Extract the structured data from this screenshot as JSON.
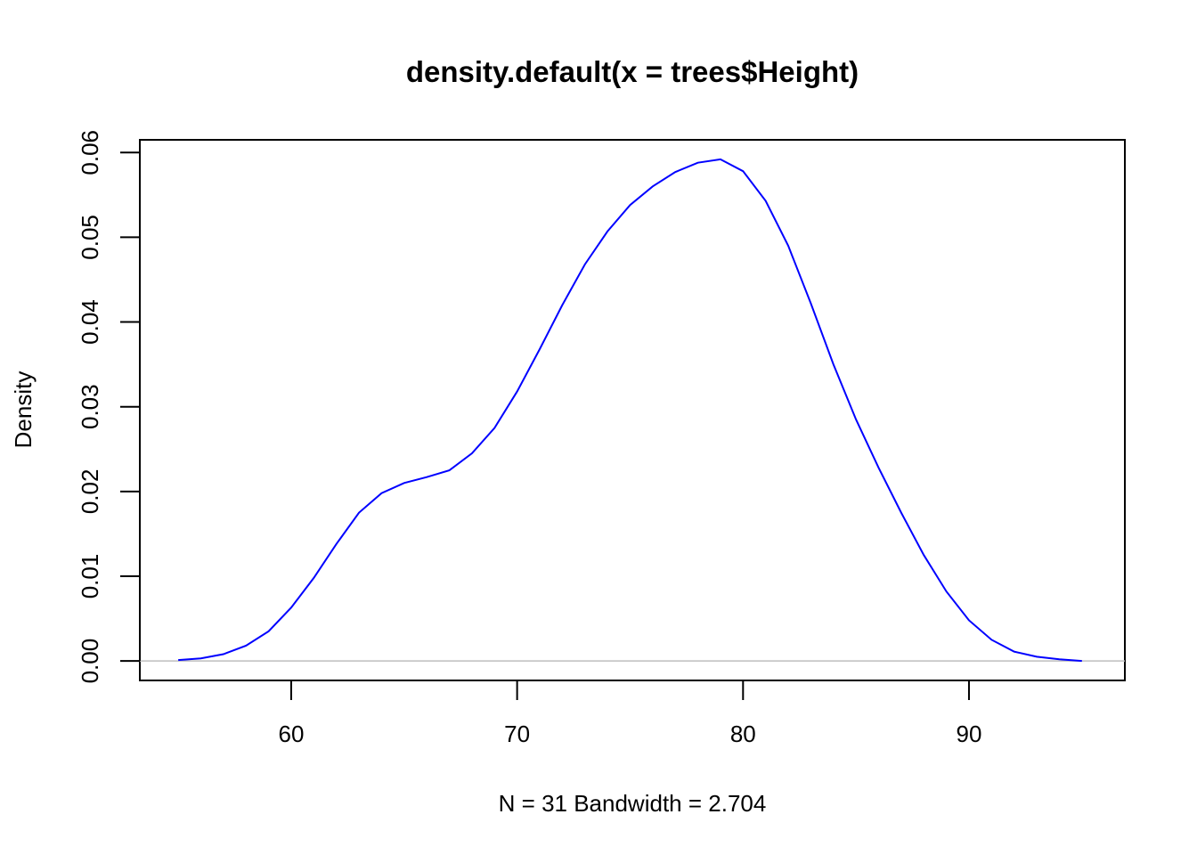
{
  "chart_data": {
    "type": "line",
    "title": "density.default(x = trees$Height)",
    "xlabel": "N = 31   Bandwidth = 2.704",
    "ylabel": "Density",
    "xlim": [
      53.3,
      96.9
    ],
    "ylim": [
      -0.0023,
      0.0615
    ],
    "x_ticks": [
      60,
      70,
      80,
      90
    ],
    "x_tick_labels": [
      "60",
      "70",
      "80",
      "90"
    ],
    "y_ticks": [
      0.0,
      0.01,
      0.02,
      0.03,
      0.04,
      0.05,
      0.06
    ],
    "y_tick_labels": [
      "0.00",
      "0.01",
      "0.02",
      "0.03",
      "0.04",
      "0.05",
      "0.06"
    ],
    "grid": false,
    "baseline": 0,
    "line_color": "#0000ff",
    "baseline_color": "#bebebe",
    "series": [
      {
        "x": [
          55.0,
          56.0,
          57.0,
          58.0,
          59.0,
          60.0,
          61.0,
          62.0,
          63.0,
          64.0,
          65.0,
          66.0,
          67.0,
          68.0,
          69.0,
          70.0,
          71.0,
          72.0,
          73.0,
          74.0,
          75.0,
          76.0,
          77.0,
          78.0,
          79.0,
          80.0,
          81.0,
          82.0,
          83.0,
          84.0,
          85.0,
          86.0,
          87.0,
          88.0,
          89.0,
          90.0,
          91.0,
          92.0,
          93.0,
          94.0,
          95.0
        ],
        "y": [
          0.0001,
          0.0003,
          0.0008,
          0.0018,
          0.0035,
          0.0063,
          0.0098,
          0.0138,
          0.0175,
          0.0198,
          0.021,
          0.0217,
          0.0225,
          0.0245,
          0.0275,
          0.0318,
          0.0368,
          0.042,
          0.0468,
          0.0507,
          0.0538,
          0.056,
          0.0577,
          0.0588,
          0.0592,
          0.0578,
          0.0543,
          0.049,
          0.0422,
          0.035,
          0.0285,
          0.0228,
          0.0175,
          0.0125,
          0.0082,
          0.0048,
          0.0025,
          0.0011,
          0.0005,
          0.0002,
          0.0
        ]
      }
    ]
  }
}
